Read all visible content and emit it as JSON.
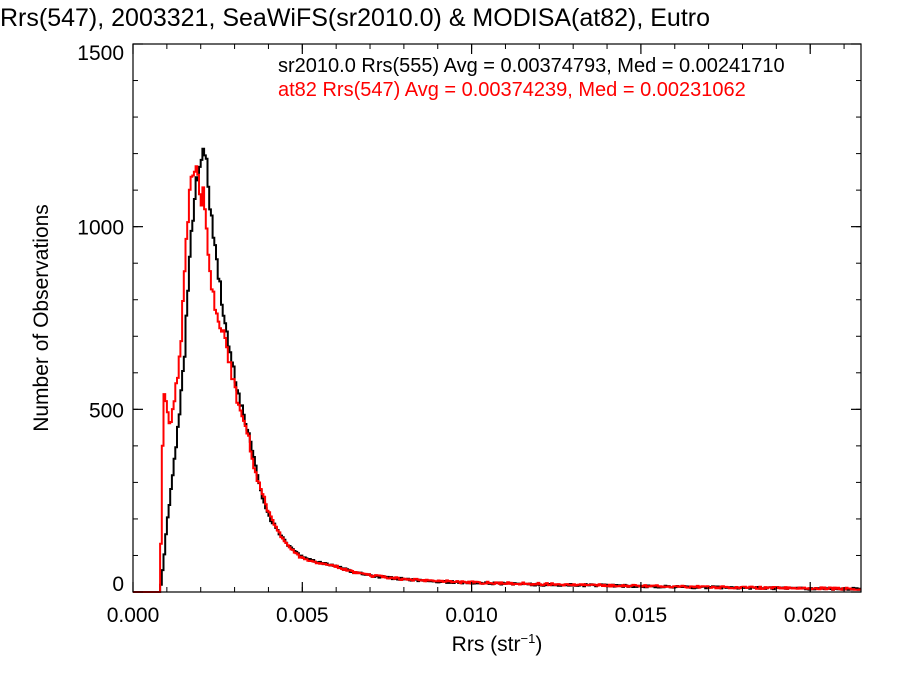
{
  "chart_data": {
    "type": "histogram",
    "title": "Rrs(547), 2003321, SeaWiFS(sr2010.0) & MODISA(at82), Eutro",
    "xlabel": {
      "main": "Rrs (str",
      "sup": "−1",
      "close": ")"
    },
    "ylabel": "Number of Observations",
    "xlim": [
      0,
      0.0215
    ],
    "ylim": [
      0,
      1500
    ],
    "x_ticks": [
      0,
      0.005,
      0.01,
      0.015,
      0.02
    ],
    "x_tick_labels": [
      "0.000",
      "0.005",
      "0.010",
      "0.015",
      "0.020"
    ],
    "y_ticks": [
      0,
      500,
      1000,
      1500
    ],
    "y_tick_labels": [
      "0",
      "500",
      "1000",
      "1500"
    ],
    "grid": false,
    "legend_position": "top-right",
    "series": [
      {
        "name": "sr2010.0 Rrs(555) Avg = 0.00374793, Med = 0.00241710",
        "color": "#000000",
        "points": [
          [
            0,
            0
          ],
          [
            0.0008,
            0
          ],
          [
            0.0009,
            80
          ],
          [
            0.001,
            180
          ],
          [
            0.0011,
            260
          ],
          [
            0.0012,
            340
          ],
          [
            0.0013,
            420
          ],
          [
            0.0014,
            520
          ],
          [
            0.0015,
            620
          ],
          [
            0.0016,
            780
          ],
          [
            0.0017,
            950
          ],
          [
            0.0018,
            1060
          ],
          [
            0.0019,
            1130
          ],
          [
            0.002,
            1190
          ],
          [
            0.0021,
            1240
          ],
          [
            0.0022,
            1130
          ],
          [
            0.0023,
            1050
          ],
          [
            0.0024,
            960
          ],
          [
            0.0025,
            880
          ],
          [
            0.0026,
            820
          ],
          [
            0.0027,
            760
          ],
          [
            0.0028,
            700
          ],
          [
            0.0029,
            640
          ],
          [
            0.003,
            590
          ],
          [
            0.0031,
            550
          ],
          [
            0.0032,
            510
          ],
          [
            0.0033,
            470
          ],
          [
            0.0034,
            440
          ],
          [
            0.0035,
            400
          ],
          [
            0.0036,
            350
          ],
          [
            0.0037,
            310
          ],
          [
            0.0038,
            270
          ],
          [
            0.0039,
            240
          ],
          [
            0.004,
            210
          ],
          [
            0.0042,
            180
          ],
          [
            0.0044,
            150
          ],
          [
            0.0046,
            125
          ],
          [
            0.0048,
            110
          ],
          [
            0.005,
            95
          ],
          [
            0.0055,
            80
          ],
          [
            0.006,
            70
          ],
          [
            0.0065,
            55
          ],
          [
            0.007,
            45
          ],
          [
            0.008,
            35
          ],
          [
            0.009,
            28
          ],
          [
            0.01,
            25
          ],
          [
            0.012,
            20
          ],
          [
            0.014,
            18
          ],
          [
            0.016,
            14
          ],
          [
            0.018,
            12
          ],
          [
            0.02,
            9
          ],
          [
            0.0215,
            8
          ]
        ]
      },
      {
        "name": "at82 Rrs(547) Avg = 0.00374239, Med = 0.00231062",
        "color": "#ff0000",
        "points": [
          [
            0,
            0
          ],
          [
            0.0008,
            0
          ],
          [
            0.0009,
            540
          ],
          [
            0.001,
            500
          ],
          [
            0.0011,
            440
          ],
          [
            0.0012,
            520
          ],
          [
            0.0013,
            580
          ],
          [
            0.0014,
            650
          ],
          [
            0.0015,
            860
          ],
          [
            0.0016,
            1010
          ],
          [
            0.0017,
            1100
          ],
          [
            0.0018,
            1190
          ],
          [
            0.0019,
            1140
          ],
          [
            0.002,
            1070
          ],
          [
            0.0021,
            1090
          ],
          [
            0.0022,
            940
          ],
          [
            0.0023,
            840
          ],
          [
            0.0024,
            800
          ],
          [
            0.0025,
            760
          ],
          [
            0.0026,
            730
          ],
          [
            0.0027,
            700
          ],
          [
            0.0028,
            660
          ],
          [
            0.0029,
            600
          ],
          [
            0.003,
            560
          ],
          [
            0.0031,
            520
          ],
          [
            0.0032,
            490
          ],
          [
            0.0033,
            460
          ],
          [
            0.0034,
            430
          ],
          [
            0.0035,
            380
          ],
          [
            0.0036,
            330
          ],
          [
            0.0037,
            300
          ],
          [
            0.0038,
            270
          ],
          [
            0.0039,
            250
          ],
          [
            0.004,
            220
          ],
          [
            0.0042,
            180
          ],
          [
            0.0044,
            150
          ],
          [
            0.0046,
            125
          ],
          [
            0.0048,
            105
          ],
          [
            0.005,
            92
          ],
          [
            0.0055,
            80
          ],
          [
            0.006,
            70
          ],
          [
            0.0065,
            55
          ],
          [
            0.007,
            45
          ],
          [
            0.008,
            35
          ],
          [
            0.009,
            30
          ],
          [
            0.01,
            26
          ],
          [
            0.012,
            22
          ],
          [
            0.014,
            18
          ],
          [
            0.016,
            15
          ],
          [
            0.018,
            12
          ],
          [
            0.02,
            10
          ],
          [
            0.0215,
            9
          ]
        ]
      }
    ]
  }
}
